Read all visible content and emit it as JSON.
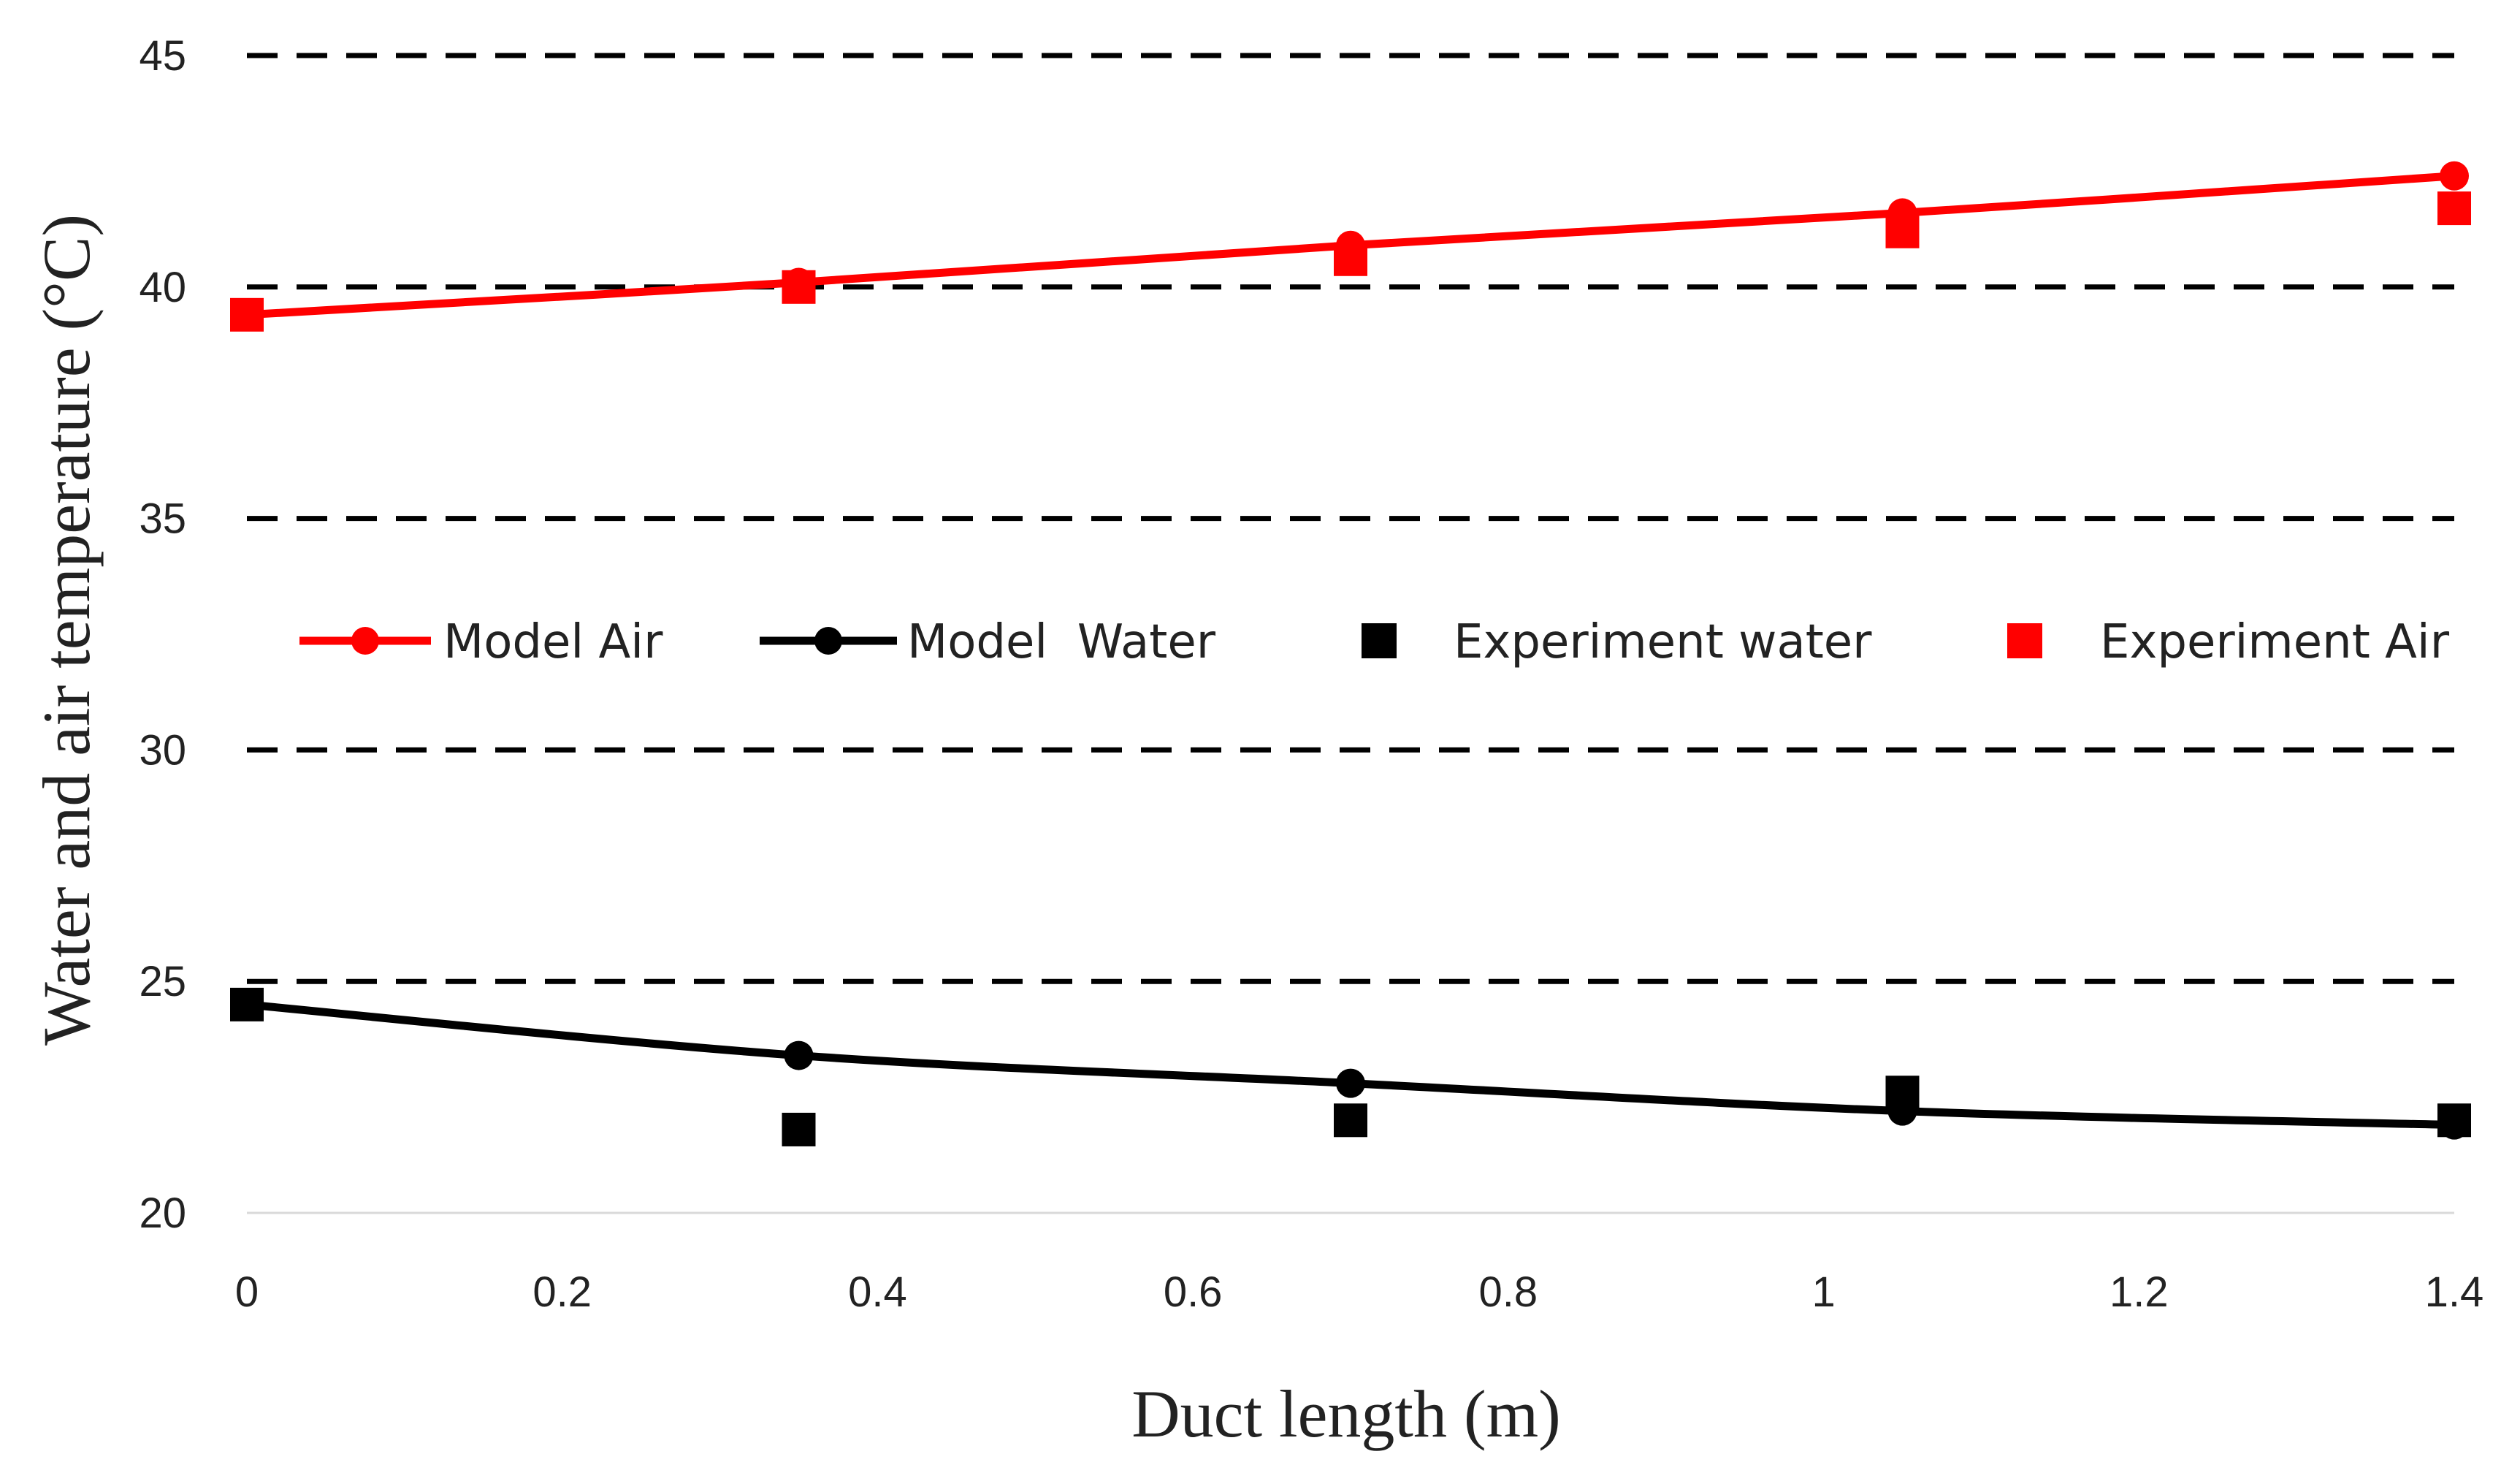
{
  "chart_data": {
    "type": "line",
    "title": "",
    "xlabel": "Duct length (m)",
    "ylabel": "Water and air temperature (°C)",
    "xlim": [
      0,
      1.4
    ],
    "ylim": [
      20,
      45
    ],
    "xticks": [
      0,
      0.2,
      0.4,
      0.6,
      0.8,
      1,
      1.2,
      1.4
    ],
    "xtick_labels": [
      "0",
      "0.2",
      "0.4",
      "0.6",
      "0.8",
      "1",
      "1.2",
      "1.4"
    ],
    "yticks": [
      20,
      25,
      30,
      35,
      40,
      45
    ],
    "ytick_labels": [
      "20",
      "25",
      "30",
      "35",
      "40",
      "45"
    ],
    "grid": "horizontal dashed",
    "legend_position": "center",
    "series": [
      {
        "name": "Model Air",
        "kind": "line-marker",
        "marker": "circle",
        "color": "#ff0000",
        "x": [
          0,
          0.35,
          0.7,
          1.05,
          1.4
        ],
        "y": [
          39.4,
          40.1,
          40.9,
          41.6,
          42.4
        ]
      },
      {
        "name": "Model  Water",
        "kind": "line-marker",
        "marker": "circle",
        "color": "#000000",
        "x": [
          0,
          0.35,
          0.7,
          1.05,
          1.4
        ],
        "y": [
          24.5,
          23.4,
          22.8,
          22.2,
          21.9
        ]
      },
      {
        "name": "Experiment water",
        "kind": "scatter",
        "marker": "square",
        "color": "#000000",
        "x": [
          0,
          0.35,
          0.7,
          1.05,
          1.4
        ],
        "y": [
          24.5,
          21.8,
          22.0,
          22.6,
          22.0
        ]
      },
      {
        "name": "Experiment Air",
        "kind": "scatter",
        "marker": "square",
        "color": "#ff0000",
        "x": [
          0,
          0.35,
          0.7,
          1.05,
          1.4
        ],
        "y": [
          39.4,
          40.0,
          40.6,
          41.2,
          41.7
        ]
      }
    ]
  }
}
